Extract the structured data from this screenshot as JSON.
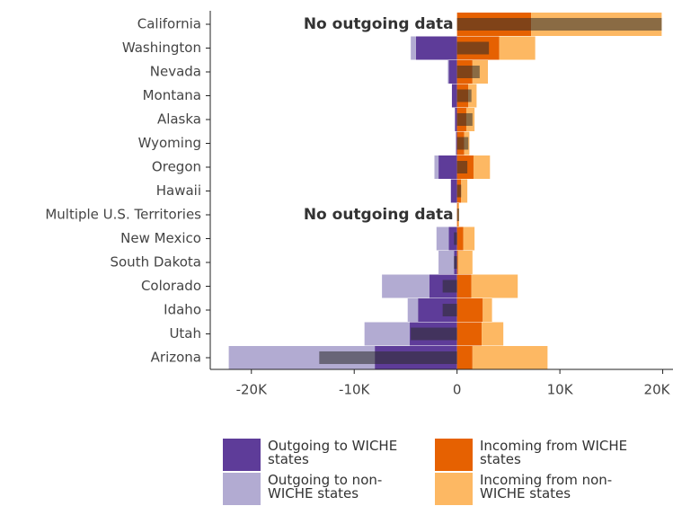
{
  "chart_data": {
    "type": "bar",
    "orientation": "horizontal",
    "categories": [
      "California",
      "Washington",
      "Nevada",
      "Montana",
      "Alaska",
      "Wyoming",
      "Oregon",
      "Hawaii",
      "Multiple U.S. Territories",
      "New Mexico",
      "South Dakota",
      "Colorado",
      "Idaho",
      "Utah",
      "Arizona"
    ],
    "series": [
      {
        "name": "Outgoing to WICHE states",
        "color": "#5e3c99",
        "values": [
          0,
          -4000,
          -800,
          -500,
          -200,
          -100,
          -1800,
          -600,
          0,
          -800,
          -300,
          -2700,
          -3800,
          -4600,
          -8000
        ]
      },
      {
        "name": "Outgoing to non-WICHE states",
        "color": "#b2abd2",
        "values": [
          0,
          -500,
          -100,
          0,
          0,
          0,
          -400,
          0,
          0,
          -1200,
          -1500,
          -4600,
          -1000,
          -4400,
          -14200
        ]
      },
      {
        "name": "Incoming from WICHE states",
        "color": "#e66101",
        "values": [
          7200,
          4100,
          1500,
          1100,
          900,
          700,
          1600,
          400,
          100,
          600,
          100,
          1400,
          2500,
          2400,
          1500
        ]
      },
      {
        "name": "Incoming from non-WICHE states",
        "color": "#fdb863",
        "values": [
          12700,
          3500,
          1500,
          800,
          800,
          500,
          1600,
          600,
          100,
          1100,
          1400,
          4500,
          900,
          2100,
          7300
        ]
      },
      {
        "color": "#2b2b2b",
        "values": [
          19900,
          3100,
          2200,
          1400,
          1500,
          1100,
          1000,
          400,
          200,
          -300,
          -300,
          -1400,
          -1400,
          -4500,
          -13400
        ]
      }
    ],
    "annotations": [
      {
        "text": "No outgoing data",
        "category": "California"
      },
      {
        "text": "No outgoing data",
        "category": "Multiple U.S. Territories"
      }
    ],
    "xlim": [
      -24000,
      21000
    ],
    "xticks": [
      {
        "value": -20000,
        "label": "-20K"
      },
      {
        "value": -10000,
        "label": "-10K"
      },
      0,
      {
        "value": 10000,
        "label": "10K"
      },
      {
        "value": 20000,
        "label": "20K"
      }
    ],
    "grid": false,
    "legend": "bottom"
  }
}
